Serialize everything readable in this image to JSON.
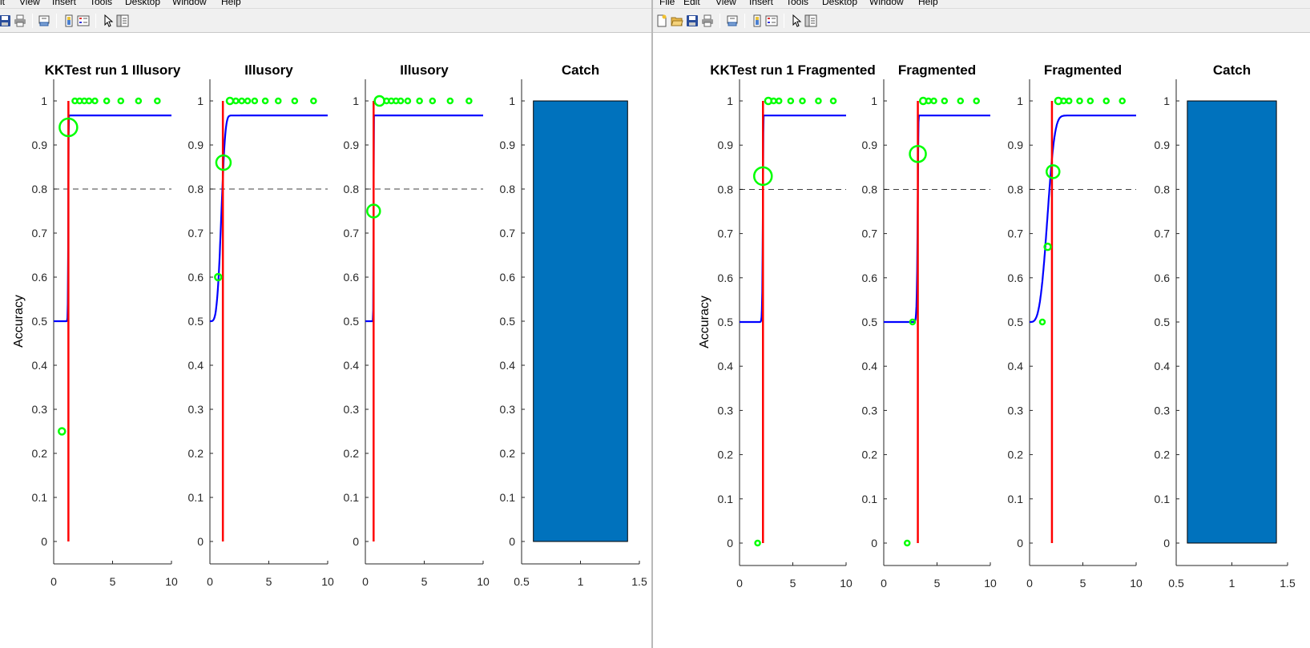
{
  "colors": {
    "curve": "#0000ff",
    "threshold": "#ff0000",
    "points": "#00ff00",
    "bar": "#0072bd",
    "reference": "#000000",
    "toolbar_bg": "#f0f0f0"
  },
  "left_window": {
    "menu": [
      "it",
      "View",
      "Insert",
      "Tools",
      "Desktop",
      "Window",
      "Help"
    ],
    "toolbar_icons": [
      "save-icon",
      "print-icon",
      "print-preview-icon",
      "colorbar-icon",
      "legend-icon",
      "pointer-icon",
      "property-inspector-icon"
    ]
  },
  "right_window": {
    "menu": [
      "File",
      "Edit",
      "View",
      "Insert",
      "Tools",
      "Desktop",
      "Window",
      "Help"
    ],
    "toolbar_icons": [
      "new-figure-icon",
      "open-icon",
      "save-icon",
      "print-icon",
      "print-preview-icon",
      "colorbar-icon",
      "legend-icon",
      "pointer-icon",
      "property-inspector-icon"
    ]
  },
  "chart_data": [
    {
      "type": "scatter",
      "window": "left",
      "title": "KKTest run 1 Illusory",
      "ylabel": "Accuracy",
      "xlim": [
        0,
        10
      ],
      "ylim": [
        0,
        1
      ],
      "xticks": [
        "0",
        "5",
        "10"
      ],
      "yticks": [
        "0",
        "0.1",
        "0.2",
        "0.3",
        "0.4",
        "0.5",
        "0.6",
        "0.7",
        "0.8",
        "0.9",
        "1"
      ],
      "reference_y": 0.8,
      "threshold_x": 1.25,
      "fit": {
        "guess": 0.5,
        "lapse": 0.967,
        "threshold": 1.25,
        "slope": 60
      },
      "points": [
        {
          "x": 0.7,
          "y": 0.25,
          "r": 4
        },
        {
          "x": 1.25,
          "y": 0.94,
          "r": 11
        },
        {
          "x": 1.8,
          "y": 1,
          "r": 3
        },
        {
          "x": 2.2,
          "y": 1,
          "r": 3
        },
        {
          "x": 2.6,
          "y": 1,
          "r": 3
        },
        {
          "x": 3.0,
          "y": 1,
          "r": 3
        },
        {
          "x": 3.5,
          "y": 1,
          "r": 3
        },
        {
          "x": 4.5,
          "y": 1,
          "r": 3
        },
        {
          "x": 5.7,
          "y": 1,
          "r": 3
        },
        {
          "x": 7.2,
          "y": 1,
          "r": 3
        },
        {
          "x": 8.8,
          "y": 1,
          "r": 3
        }
      ]
    },
    {
      "type": "scatter",
      "window": "left",
      "title": "Illusory",
      "ylabel": "",
      "xlim": [
        0,
        10
      ],
      "ylim": [
        0,
        1
      ],
      "xticks": [
        "0",
        "5",
        "10"
      ],
      "yticks": [
        "0",
        "0.1",
        "0.2",
        "0.3",
        "0.4",
        "0.5",
        "0.6",
        "0.7",
        "0.8",
        "0.9",
        "1"
      ],
      "reference_y": 0.8,
      "threshold_x": 1.1,
      "fit": {
        "guess": 0.5,
        "lapse": 0.967,
        "threshold": 1.05,
        "slope": 4
      },
      "points": [
        {
          "x": 0.7,
          "y": 0.6,
          "r": 4
        },
        {
          "x": 1.15,
          "y": 0.86,
          "r": 9
        },
        {
          "x": 1.7,
          "y": 1,
          "r": 4
        },
        {
          "x": 2.2,
          "y": 1,
          "r": 3
        },
        {
          "x": 2.7,
          "y": 1,
          "r": 3
        },
        {
          "x": 3.2,
          "y": 1,
          "r": 3
        },
        {
          "x": 3.8,
          "y": 1,
          "r": 3
        },
        {
          "x": 4.7,
          "y": 1,
          "r": 3
        },
        {
          "x": 5.8,
          "y": 1,
          "r": 3
        },
        {
          "x": 7.2,
          "y": 1,
          "r": 3
        },
        {
          "x": 8.8,
          "y": 1,
          "r": 3
        }
      ]
    },
    {
      "type": "scatter",
      "window": "left",
      "title": "Illusory",
      "ylabel": "",
      "xlim": [
        0,
        10
      ],
      "ylim": [
        0,
        1
      ],
      "xticks": [
        "0",
        "5",
        "10"
      ],
      "yticks": [
        "0",
        "0.1",
        "0.2",
        "0.3",
        "0.4",
        "0.5",
        "0.6",
        "0.7",
        "0.8",
        "0.9",
        "1"
      ],
      "reference_y": 0.8,
      "threshold_x": 0.7,
      "fit": {
        "guess": 0.5,
        "lapse": 0.967,
        "threshold": 0.7,
        "slope": 60
      },
      "points": [
        {
          "x": 0.7,
          "y": 0.75,
          "r": 8
        },
        {
          "x": 1.2,
          "y": 1,
          "r": 6
        },
        {
          "x": 1.8,
          "y": 1,
          "r": 3
        },
        {
          "x": 2.2,
          "y": 1,
          "r": 3
        },
        {
          "x": 2.6,
          "y": 1,
          "r": 3
        },
        {
          "x": 3.0,
          "y": 1,
          "r": 3
        },
        {
          "x": 3.6,
          "y": 1,
          "r": 3
        },
        {
          "x": 4.6,
          "y": 1,
          "r": 3
        },
        {
          "x": 5.7,
          "y": 1,
          "r": 3
        },
        {
          "x": 7.2,
          "y": 1,
          "r": 3
        },
        {
          "x": 8.8,
          "y": 1,
          "r": 3
        }
      ]
    },
    {
      "type": "bar",
      "window": "left",
      "title": "Catch",
      "ylabel": "",
      "xlim": [
        0.5,
        1.5
      ],
      "ylim": [
        0,
        1
      ],
      "xticks": [
        "0.5",
        "1",
        "1.5"
      ],
      "yticks": [
        "0",
        "0.1",
        "0.2",
        "0.3",
        "0.4",
        "0.5",
        "0.6",
        "0.7",
        "0.8",
        "0.9",
        "1"
      ],
      "categories": [
        "1"
      ],
      "values": [
        1
      ],
      "bar_width": 0.8
    },
    {
      "type": "scatter",
      "window": "right",
      "title": "KKTest run 1 Fragmented",
      "ylabel": "Accuracy",
      "xlim": [
        0,
        10
      ],
      "ylim": [
        0,
        1
      ],
      "xticks": [
        "0",
        "5",
        "10"
      ],
      "yticks": [
        "0",
        "0.1",
        "0.2",
        "0.3",
        "0.4",
        "0.5",
        "0.6",
        "0.7",
        "0.8",
        "0.9",
        "1"
      ],
      "reference_y": 0.8,
      "threshold_x": 2.2,
      "fit": {
        "guess": 0.5,
        "lapse": 0.967,
        "threshold": 2.2,
        "slope": 60
      },
      "points": [
        {
          "x": 1.7,
          "y": 0,
          "r": 3
        },
        {
          "x": 2.2,
          "y": 0.83,
          "r": 11
        },
        {
          "x": 2.7,
          "y": 1,
          "r": 4
        },
        {
          "x": 3.2,
          "y": 1,
          "r": 3
        },
        {
          "x": 3.7,
          "y": 1,
          "r": 3
        },
        {
          "x": 4.8,
          "y": 1,
          "r": 3
        },
        {
          "x": 5.9,
          "y": 1,
          "r": 3
        },
        {
          "x": 7.4,
          "y": 1,
          "r": 3
        },
        {
          "x": 8.8,
          "y": 1,
          "r": 3
        }
      ]
    },
    {
      "type": "scatter",
      "window": "right",
      "title": "Fragmented",
      "ylabel": "",
      "xlim": [
        0,
        10
      ],
      "ylim": [
        0,
        1
      ],
      "xticks": [
        "0",
        "5",
        "10"
      ],
      "yticks": [
        "0",
        "0.1",
        "0.2",
        "0.3",
        "0.4",
        "0.5",
        "0.6",
        "0.7",
        "0.8",
        "0.9",
        "1"
      ],
      "reference_y": 0.8,
      "threshold_x": 3.2,
      "fit": {
        "guess": 0.5,
        "lapse": 0.967,
        "threshold": 3.2,
        "slope": 60
      },
      "points": [
        {
          "x": 2.2,
          "y": 0,
          "r": 3
        },
        {
          "x": 2.7,
          "y": 0.5,
          "r": 3
        },
        {
          "x": 3.2,
          "y": 0.88,
          "r": 10
        },
        {
          "x": 3.7,
          "y": 1,
          "r": 4
        },
        {
          "x": 4.2,
          "y": 1,
          "r": 3
        },
        {
          "x": 4.7,
          "y": 1,
          "r": 3
        },
        {
          "x": 5.7,
          "y": 1,
          "r": 3
        },
        {
          "x": 7.2,
          "y": 1,
          "r": 3
        },
        {
          "x": 8.7,
          "y": 1,
          "r": 3
        }
      ]
    },
    {
      "type": "scatter",
      "window": "right",
      "title": "Fragmented",
      "ylabel": "",
      "xlim": [
        0,
        10
      ],
      "ylim": [
        0,
        1
      ],
      "xticks": [
        "0",
        "5",
        "10"
      ],
      "yticks": [
        "0",
        "0.1",
        "0.2",
        "0.3",
        "0.4",
        "0.5",
        "0.6",
        "0.7",
        "0.8",
        "0.9",
        "1"
      ],
      "reference_y": 0.8,
      "threshold_x": 2.1,
      "fit": {
        "guess": 0.5,
        "lapse": 0.967,
        "threshold": 1.85,
        "slope": 3.5
      },
      "points": [
        {
          "x": 1.2,
          "y": 0.5,
          "r": 3
        },
        {
          "x": 1.7,
          "y": 0.67,
          "r": 4
        },
        {
          "x": 2.2,
          "y": 0.84,
          "r": 8
        },
        {
          "x": 2.7,
          "y": 1,
          "r": 4
        },
        {
          "x": 3.2,
          "y": 1,
          "r": 3
        },
        {
          "x": 3.7,
          "y": 1,
          "r": 3
        },
        {
          "x": 4.7,
          "y": 1,
          "r": 3
        },
        {
          "x": 5.7,
          "y": 1,
          "r": 3
        },
        {
          "x": 7.2,
          "y": 1,
          "r": 3
        },
        {
          "x": 8.7,
          "y": 1,
          "r": 3
        }
      ]
    },
    {
      "type": "bar",
      "window": "right",
      "title": "Catch",
      "ylabel": "",
      "xlim": [
        0.5,
        1.5
      ],
      "ylim": [
        0,
        1
      ],
      "xticks": [
        "0.5",
        "1",
        "1.5"
      ],
      "yticks": [
        "0",
        "0.1",
        "0.2",
        "0.3",
        "0.4",
        "0.5",
        "0.6",
        "0.7",
        "0.8",
        "0.9",
        "1"
      ],
      "categories": [
        "1"
      ],
      "values": [
        1
      ],
      "bar_width": 0.8
    }
  ]
}
